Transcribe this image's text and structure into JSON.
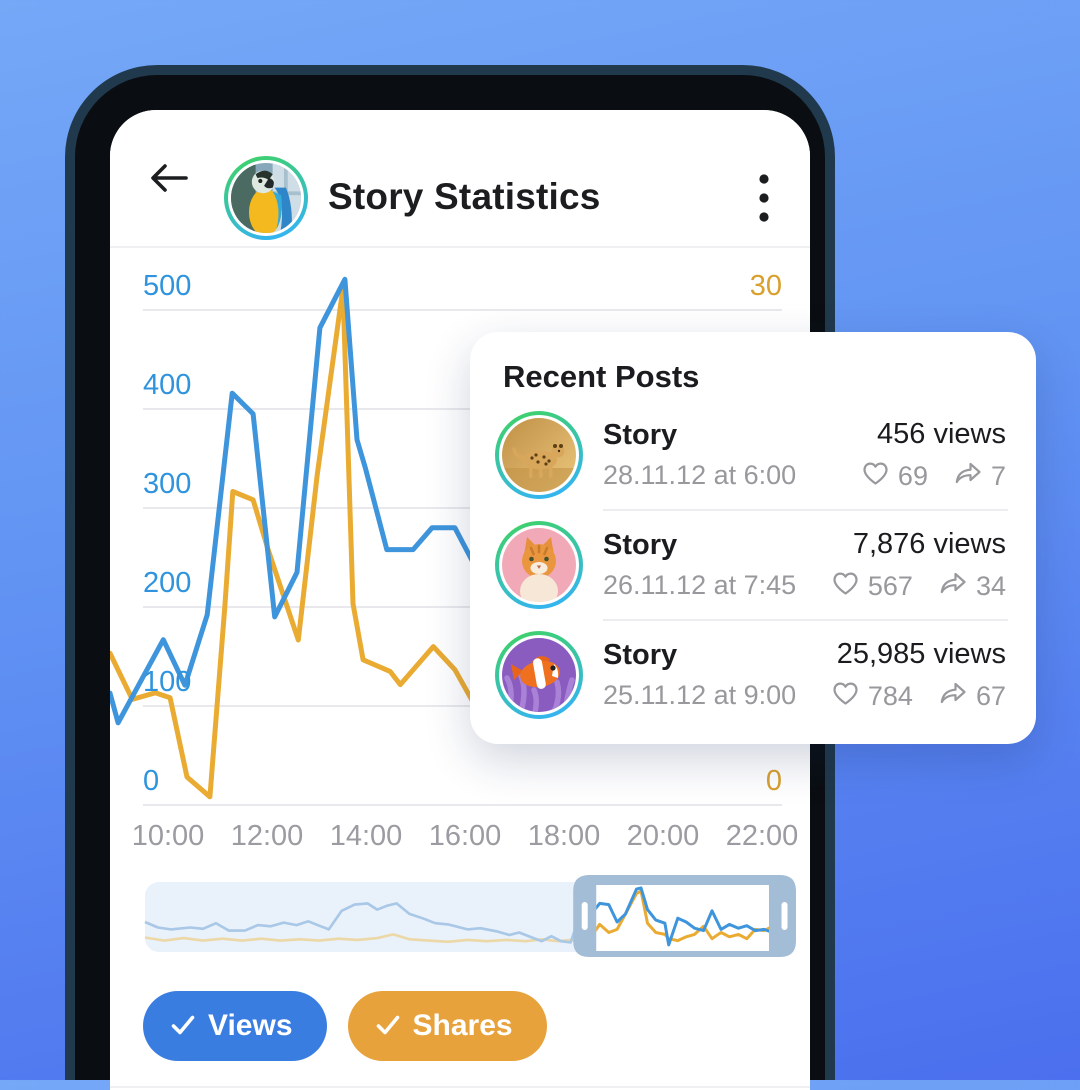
{
  "header": {
    "title": "Story Statistics",
    "icons": {
      "back": "back-arrow",
      "menu": "kebab-dots",
      "avatar": "parrot-photo"
    }
  },
  "recent_posts": {
    "title": "Recent Posts",
    "items": [
      {
        "title": "Story",
        "date": "28.11.12 at 6:00",
        "views": "456 views",
        "likes": "69",
        "shares": "7",
        "avatar": "cheetah-photo"
      },
      {
        "title": "Story",
        "date": "26.11.12 at 7:45",
        "views": "7,876 views",
        "likes": "567",
        "shares": "34",
        "avatar": "cat-photo"
      },
      {
        "title": "Story",
        "date": "25.11.12 at 9:00",
        "views": "25,985 views",
        "likes": "784",
        "shares": "67",
        "avatar": "clownfish-photo"
      }
    ],
    "icons": {
      "likes": "heart",
      "shares": "forward-arrow"
    }
  },
  "toggles": {
    "views": {
      "label": "Views",
      "color": "#3a7de0",
      "icon": "checkmark"
    },
    "shares": {
      "label": "Shares",
      "color": "#e8a23c",
      "icon": "checkmark"
    }
  },
  "chart_data": {
    "type": "line",
    "title": "",
    "x_ticks": [
      "10:00",
      "12:00",
      "14:00",
      "16:00",
      "18:00",
      "20:00",
      "22:00"
    ],
    "y_left": {
      "ticks": [
        0,
        100,
        200,
        300,
        400,
        500
      ],
      "color": "#2f94dd",
      "range": [
        0,
        500
      ]
    },
    "y_right": {
      "ticks": [
        0,
        30
      ],
      "color": "#d9a02e",
      "range": [
        0,
        30
      ]
    },
    "grid": true,
    "legend_position": "bottom-toggles",
    "series": [
      {
        "name": "Views",
        "axis": "left",
        "color": "#3e95dc",
        "points": [
          [
            0,
            113
          ],
          [
            0.012,
            83
          ],
          [
            0.079,
            167
          ],
          [
            0.111,
            121
          ],
          [
            0.144,
            192
          ],
          [
            0.181,
            416
          ],
          [
            0.212,
            395
          ],
          [
            0.244,
            190
          ],
          [
            0.277,
            235
          ],
          [
            0.311,
            482
          ],
          [
            0.348,
            531
          ],
          [
            0.366,
            369
          ],
          [
            0.378,
            341
          ],
          [
            0.41,
            258
          ],
          [
            0.449,
            258
          ],
          [
            0.477,
            280
          ],
          [
            0.511,
            280
          ],
          [
            0.548,
            232
          ],
          [
            0.59,
            205
          ],
          [
            0.62,
            218
          ],
          [
            0.65,
            188
          ],
          [
            0.68,
            222
          ],
          [
            0.71,
            196
          ],
          [
            0.74,
            212
          ],
          [
            0.77,
            186
          ],
          [
            0.8,
            208
          ],
          [
            0.83,
            190
          ],
          [
            0.86,
            204
          ],
          [
            0.9,
            192
          ],
          [
            0.94,
            202
          ],
          [
            0.97,
            188
          ],
          [
            1,
            228
          ]
        ]
      },
      {
        "name": "Shares",
        "axis": "right",
        "color": "#eaab33",
        "points": [
          [
            0,
            9.2
          ],
          [
            0.033,
            6.4
          ],
          [
            0.067,
            6.8
          ],
          [
            0.089,
            6.5
          ],
          [
            0.114,
            1.7
          ],
          [
            0.148,
            0.5
          ],
          [
            0.17,
            12
          ],
          [
            0.182,
            19
          ],
          [
            0.212,
            18.5
          ],
          [
            0.234,
            15.5
          ],
          [
            0.279,
            10
          ],
          [
            0.307,
            20
          ],
          [
            0.345,
            31.3
          ],
          [
            0.36,
            12.2
          ],
          [
            0.375,
            8.8
          ],
          [
            0.415,
            8.1
          ],
          [
            0.43,
            7.3
          ],
          [
            0.479,
            9.6
          ],
          [
            0.511,
            8.2
          ],
          [
            0.548,
            5.5
          ],
          [
            0.59,
            4.5
          ],
          [
            0.62,
            6.2
          ],
          [
            0.65,
            4.8
          ],
          [
            0.68,
            6.5
          ],
          [
            0.71,
            5
          ],
          [
            0.74,
            6.2
          ],
          [
            0.77,
            4.6
          ],
          [
            0.8,
            6
          ],
          [
            0.83,
            5.2
          ],
          [
            0.86,
            6.4
          ],
          [
            0.9,
            5
          ],
          [
            0.94,
            6.6
          ],
          [
            0.97,
            5.2
          ],
          [
            1,
            7.5
          ]
        ]
      }
    ],
    "minimap": {
      "panel_color": "#e9f1fa",
      "faded_views_color": "#a9c7e6",
      "faded_shares_color": "#ecd8a6",
      "frame_color": "#a3bdd7",
      "selection": {
        "start": 0.667,
        "end": 1.0
      },
      "views": [
        [
          0,
          0.42
        ],
        [
          0.02,
          0.33
        ],
        [
          0.04,
          0.3
        ],
        [
          0.07,
          0.33
        ],
        [
          0.09,
          0.31
        ],
        [
          0.11,
          0.4
        ],
        [
          0.13,
          0.28
        ],
        [
          0.155,
          0.28
        ],
        [
          0.175,
          0.37
        ],
        [
          0.195,
          0.35
        ],
        [
          0.215,
          0.41
        ],
        [
          0.235,
          0.37
        ],
        [
          0.253,
          0.43
        ],
        [
          0.27,
          0.36
        ],
        [
          0.285,
          0.3
        ],
        [
          0.305,
          0.6
        ],
        [
          0.325,
          0.7
        ],
        [
          0.345,
          0.72
        ],
        [
          0.36,
          0.62
        ],
        [
          0.375,
          0.68
        ],
        [
          0.39,
          0.72
        ],
        [
          0.41,
          0.55
        ],
        [
          0.43,
          0.48
        ],
        [
          0.45,
          0.4
        ],
        [
          0.47,
          0.38
        ],
        [
          0.5,
          0.3
        ],
        [
          0.52,
          0.32
        ],
        [
          0.545,
          0.27
        ],
        [
          0.565,
          0.21
        ],
        [
          0.58,
          0.25
        ],
        [
          0.6,
          0.17
        ],
        [
          0.615,
          0.11
        ],
        [
          0.63,
          0.19
        ],
        [
          0.645,
          0.11
        ],
        [
          0.66,
          0.09
        ],
        [
          0.665,
          0.25
        ],
        [
          0.678,
          0.2
        ],
        [
          0.692,
          0.55
        ],
        [
          0.705,
          0.72
        ],
        [
          0.719,
          0.7
        ],
        [
          0.732,
          0.42
        ],
        [
          0.745,
          0.55
        ],
        [
          0.762,
          0.95
        ],
        [
          0.769,
          0.97
        ],
        [
          0.779,
          0.62
        ],
        [
          0.792,
          0.45
        ],
        [
          0.806,
          0.4
        ],
        [
          0.812,
          0.05
        ],
        [
          0.826,
          0.48
        ],
        [
          0.839,
          0.42
        ],
        [
          0.852,
          0.32
        ],
        [
          0.866,
          0.28
        ],
        [
          0.879,
          0.6
        ],
        [
          0.893,
          0.3
        ],
        [
          0.906,
          0.38
        ],
        [
          0.92,
          0.32
        ],
        [
          0.933,
          0.36
        ],
        [
          0.946,
          0.28
        ],
        [
          0.96,
          0.3
        ],
        [
          0.973,
          0.25
        ],
        [
          0.987,
          0.32
        ],
        [
          1,
          0.48
        ]
      ],
      "shares": [
        [
          0,
          0.17
        ],
        [
          0.03,
          0.12
        ],
        [
          0.06,
          0.16
        ],
        [
          0.09,
          0.12
        ],
        [
          0.12,
          0.15
        ],
        [
          0.15,
          0.12
        ],
        [
          0.18,
          0.15
        ],
        [
          0.21,
          0.12
        ],
        [
          0.24,
          0.14
        ],
        [
          0.27,
          0.12
        ],
        [
          0.3,
          0.15
        ],
        [
          0.33,
          0.13
        ],
        [
          0.36,
          0.16
        ],
        [
          0.385,
          0.22
        ],
        [
          0.41,
          0.14
        ],
        [
          0.44,
          0.12
        ],
        [
          0.47,
          0.1
        ],
        [
          0.5,
          0.13
        ],
        [
          0.53,
          0.11
        ],
        [
          0.56,
          0.13
        ],
        [
          0.59,
          0.11
        ],
        [
          0.615,
          0.14
        ],
        [
          0.64,
          0.11
        ],
        [
          0.66,
          0.13
        ],
        [
          0.665,
          0.12
        ],
        [
          0.678,
          0.08
        ],
        [
          0.692,
          0.18
        ],
        [
          0.705,
          0.38
        ],
        [
          0.719,
          0.25
        ],
        [
          0.732,
          0.3
        ],
        [
          0.745,
          0.55
        ],
        [
          0.762,
          0.88
        ],
        [
          0.769,
          0.92
        ],
        [
          0.779,
          0.4
        ],
        [
          0.792,
          0.25
        ],
        [
          0.806,
          0.22
        ],
        [
          0.812,
          0.15
        ],
        [
          0.826,
          0.12
        ],
        [
          0.839,
          0.18
        ],
        [
          0.852,
          0.22
        ],
        [
          0.866,
          0.35
        ],
        [
          0.879,
          0.15
        ],
        [
          0.893,
          0.25
        ],
        [
          0.906,
          0.18
        ],
        [
          0.92,
          0.22
        ],
        [
          0.933,
          0.15
        ],
        [
          0.946,
          0.3
        ],
        [
          0.96,
          0.28
        ],
        [
          0.973,
          0.35
        ],
        [
          0.987,
          0.2
        ],
        [
          1,
          0.3
        ]
      ]
    }
  }
}
